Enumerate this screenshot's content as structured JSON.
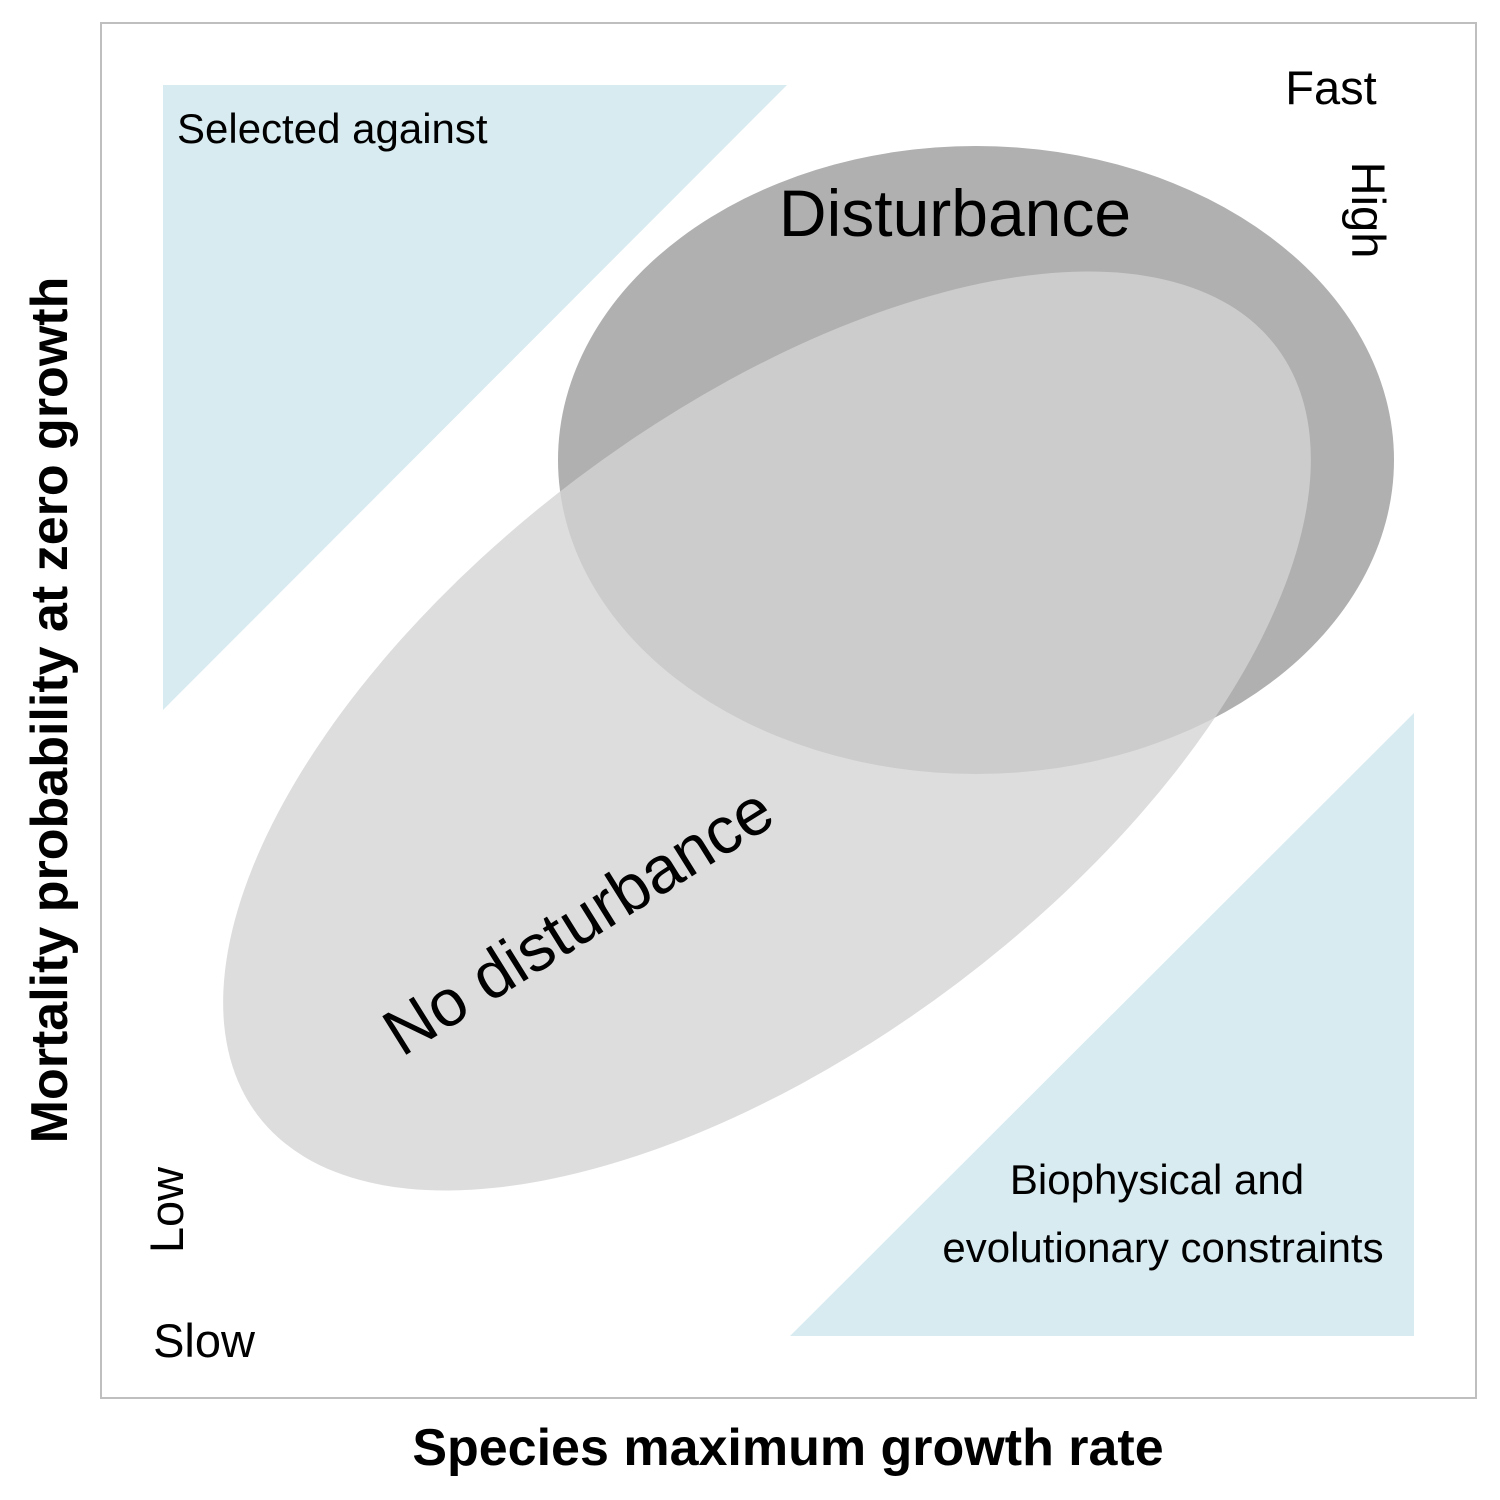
{
  "diagram": {
    "x_axis_label": "Species maximum growth rate",
    "y_axis_label": "Mortality probability at zero growth",
    "x_low_label": "Slow",
    "x_high_label": "Fast",
    "y_low_label": "Low",
    "y_high_label": "High",
    "zones": {
      "upper_left": "Selected against",
      "lower_right_line1": "Biophysical and",
      "lower_right_line2": "evolutionary constraints"
    },
    "regions": {
      "disturbance": "Disturbance",
      "no_disturbance": "No disturbance"
    },
    "colors": {
      "zone_fill": "#d8ebf1",
      "disturbance_fill": "#b0b0b0",
      "no_disturbance_fill": "#d3d3d3",
      "frame": "#bfbfbf"
    }
  }
}
